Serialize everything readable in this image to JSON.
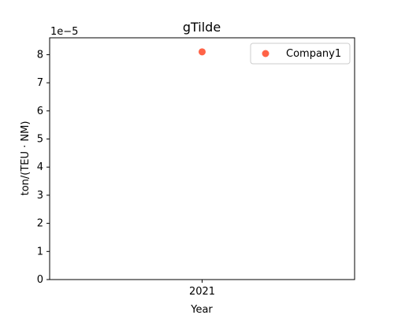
{
  "chart_data": {
    "type": "scatter",
    "title": "gTilde",
    "xlabel": "Year",
    "ylabel": "ton/(TEU · NM)",
    "y_offset_label": "1e−5",
    "x_categories": [
      "2021"
    ],
    "x": [
      2021
    ],
    "y_ticks": [
      "0",
      "1",
      "2",
      "3",
      "4",
      "5",
      "6",
      "7",
      "8"
    ],
    "ylim": [
      0,
      8.6e-05
    ],
    "grid": false,
    "legend_position": "top-right",
    "series": [
      {
        "name": "Company1",
        "color": "#ff6347",
        "x": [
          2021
        ],
        "y": [
          8.1e-05
        ]
      }
    ]
  }
}
